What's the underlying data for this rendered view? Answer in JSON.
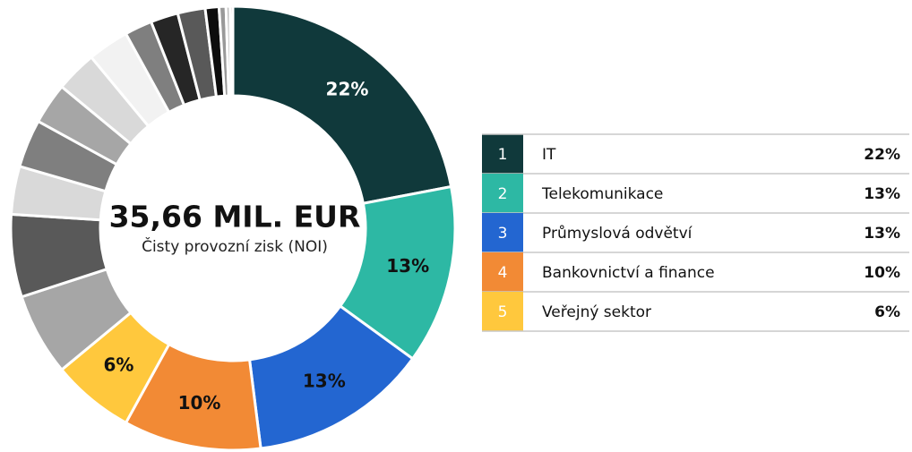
{
  "chart_data": {
    "type": "donut",
    "center_title": "35,66 MIL. EUR",
    "center_subtitle": "Čisty provozní zisk (NOI)",
    "categories": [
      "IT",
      "Telekomunikace",
      "Průmyslová odvětví",
      "Bankovnictví a finance",
      "Veřejný sektor",
      null,
      null,
      null,
      null,
      null,
      null,
      null,
      null,
      null,
      null,
      null,
      null,
      null,
      null
    ],
    "values": [
      22,
      13,
      13,
      10,
      6,
      6,
      6,
      3.5,
      3.5,
      3,
      3,
      3,
      2,
      2,
      2,
      1,
      0.5,
      0.3,
      0.2
    ],
    "value_labels": [
      "22%",
      "13%",
      "13%",
      "10%",
      "6%",
      null,
      null,
      null,
      null,
      null,
      null,
      null,
      null,
      null,
      null,
      null,
      null,
      null,
      null
    ],
    "colors": [
      "#10393b",
      "#2db8a4",
      "#2366d1",
      "#f28a35",
      "#ffc83d",
      "#a6a6a6",
      "#595959",
      "#d9d9d9",
      "#7f7f7f",
      "#a6a6a6",
      "#d9d9d9",
      "#f2f2f2",
      "#7f7f7f",
      "#262626",
      "#595959",
      "#0d0d0d",
      "#999999",
      "#bfbfbf",
      "#7b1c1c"
    ],
    "rank_labels": [
      "1",
      "2",
      "3",
      "4",
      "5"
    ]
  }
}
